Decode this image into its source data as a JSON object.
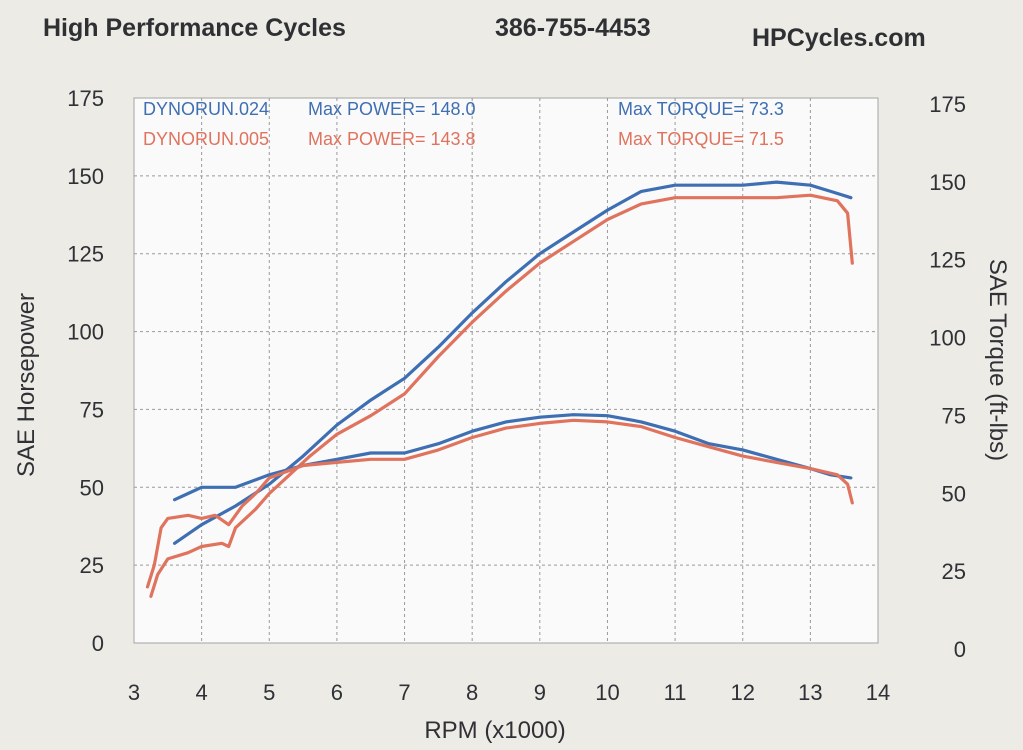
{
  "header": {
    "company": "High Performance Cycles",
    "phone": "386-755-4453",
    "website": "HPCycles.com"
  },
  "legend": {
    "run1": {
      "name": "DYNORUN.024",
      "power": "Max POWER= 148.0",
      "torque": "Max TORQUE= 73.3"
    },
    "run2": {
      "name": "DYNORUN.005",
      "power": "Max POWER= 143.8",
      "torque": "Max TORQUE= 71.5"
    }
  },
  "colors": {
    "run1": "#3f6fb3",
    "run2": "#e0735e"
  },
  "chart_data": {
    "type": "line",
    "xlabel": "RPM (x1000)",
    "ylabel": "SAE Horsepower",
    "y2label": "SAE Torque (ft-lbs)",
    "xlim": [
      3,
      14
    ],
    "ylim": [
      0,
      175
    ],
    "y2lim": [
      0,
      175
    ],
    "x_ticks": [
      3,
      4,
      5,
      6,
      7,
      8,
      9,
      10,
      11,
      12,
      13,
      14
    ],
    "y_ticks": [
      0,
      25,
      50,
      75,
      100,
      125,
      150,
      175
    ],
    "y2_ticks": [
      0,
      25,
      50,
      75,
      100,
      125,
      150,
      175
    ],
    "grid": true,
    "series": [
      {
        "name": "DYNORUN.024",
        "measure": "power",
        "points": [
          [
            3.6,
            32
          ],
          [
            4,
            38
          ],
          [
            4.5,
            44
          ],
          [
            5,
            51
          ],
          [
            5.5,
            60
          ],
          [
            6,
            70
          ],
          [
            6.5,
            78
          ],
          [
            7,
            85
          ],
          [
            7.5,
            95
          ],
          [
            8,
            106
          ],
          [
            8.5,
            116
          ],
          [
            9,
            125
          ],
          [
            9.5,
            132
          ],
          [
            10,
            139
          ],
          [
            10.5,
            145
          ],
          [
            11,
            147
          ],
          [
            11.5,
            147
          ],
          [
            12,
            147
          ],
          [
            12.5,
            148
          ],
          [
            13,
            147
          ],
          [
            13.3,
            145
          ],
          [
            13.6,
            143
          ]
        ]
      },
      {
        "name": "DYNORUN.005",
        "measure": "power",
        "points": [
          [
            3.25,
            15
          ],
          [
            3.35,
            22
          ],
          [
            3.5,
            27
          ],
          [
            3.8,
            29
          ],
          [
            4,
            31
          ],
          [
            4.3,
            32
          ],
          [
            4.4,
            31
          ],
          [
            4.5,
            37
          ],
          [
            4.8,
            43
          ],
          [
            5,
            48
          ],
          [
            5.3,
            54
          ],
          [
            5.6,
            60
          ],
          [
            6,
            67
          ],
          [
            6.5,
            73
          ],
          [
            7,
            80
          ],
          [
            7.5,
            92
          ],
          [
            8,
            103
          ],
          [
            8.5,
            113
          ],
          [
            9,
            122
          ],
          [
            9.5,
            129
          ],
          [
            10,
            136
          ],
          [
            10.5,
            141
          ],
          [
            11,
            143
          ],
          [
            11.5,
            143
          ],
          [
            12,
            143
          ],
          [
            12.5,
            143
          ],
          [
            13,
            143.8
          ],
          [
            13.4,
            142
          ],
          [
            13.55,
            138
          ],
          [
            13.62,
            122
          ]
        ]
      },
      {
        "name": "DYNORUN.024",
        "measure": "torque",
        "points": [
          [
            3.6,
            46
          ],
          [
            3.8,
            48
          ],
          [
            4,
            50
          ],
          [
            4.5,
            50
          ],
          [
            5,
            54
          ],
          [
            5.5,
            57
          ],
          [
            6,
            59
          ],
          [
            6.5,
            61
          ],
          [
            7,
            61
          ],
          [
            7.5,
            64
          ],
          [
            8,
            68
          ],
          [
            8.5,
            71
          ],
          [
            9,
            72.5
          ],
          [
            9.5,
            73.3
          ],
          [
            10,
            73
          ],
          [
            10.5,
            71
          ],
          [
            11,
            68
          ],
          [
            11.5,
            64
          ],
          [
            12,
            62
          ],
          [
            12.5,
            59
          ],
          [
            13,
            56
          ],
          [
            13.3,
            54
          ],
          [
            13.6,
            53
          ]
        ]
      },
      {
        "name": "DYNORUN.005",
        "measure": "torque",
        "points": [
          [
            3.2,
            18
          ],
          [
            3.3,
            25
          ],
          [
            3.4,
            37
          ],
          [
            3.5,
            40
          ],
          [
            3.8,
            41
          ],
          [
            4,
            40
          ],
          [
            4.2,
            41
          ],
          [
            4.4,
            38
          ],
          [
            4.6,
            44
          ],
          [
            4.8,
            48
          ],
          [
            5,
            53
          ],
          [
            5.5,
            57
          ],
          [
            6,
            58
          ],
          [
            6.5,
            59
          ],
          [
            7,
            59
          ],
          [
            7.5,
            62
          ],
          [
            8,
            66
          ],
          [
            8.5,
            69
          ],
          [
            9,
            70.5
          ],
          [
            9.5,
            71.5
          ],
          [
            10,
            71
          ],
          [
            10.5,
            69.5
          ],
          [
            11,
            66
          ],
          [
            11.5,
            63
          ],
          [
            12,
            60
          ],
          [
            12.5,
            58
          ],
          [
            13,
            56
          ],
          [
            13.4,
            54
          ],
          [
            13.55,
            51
          ],
          [
            13.62,
            45
          ]
        ]
      }
    ]
  }
}
